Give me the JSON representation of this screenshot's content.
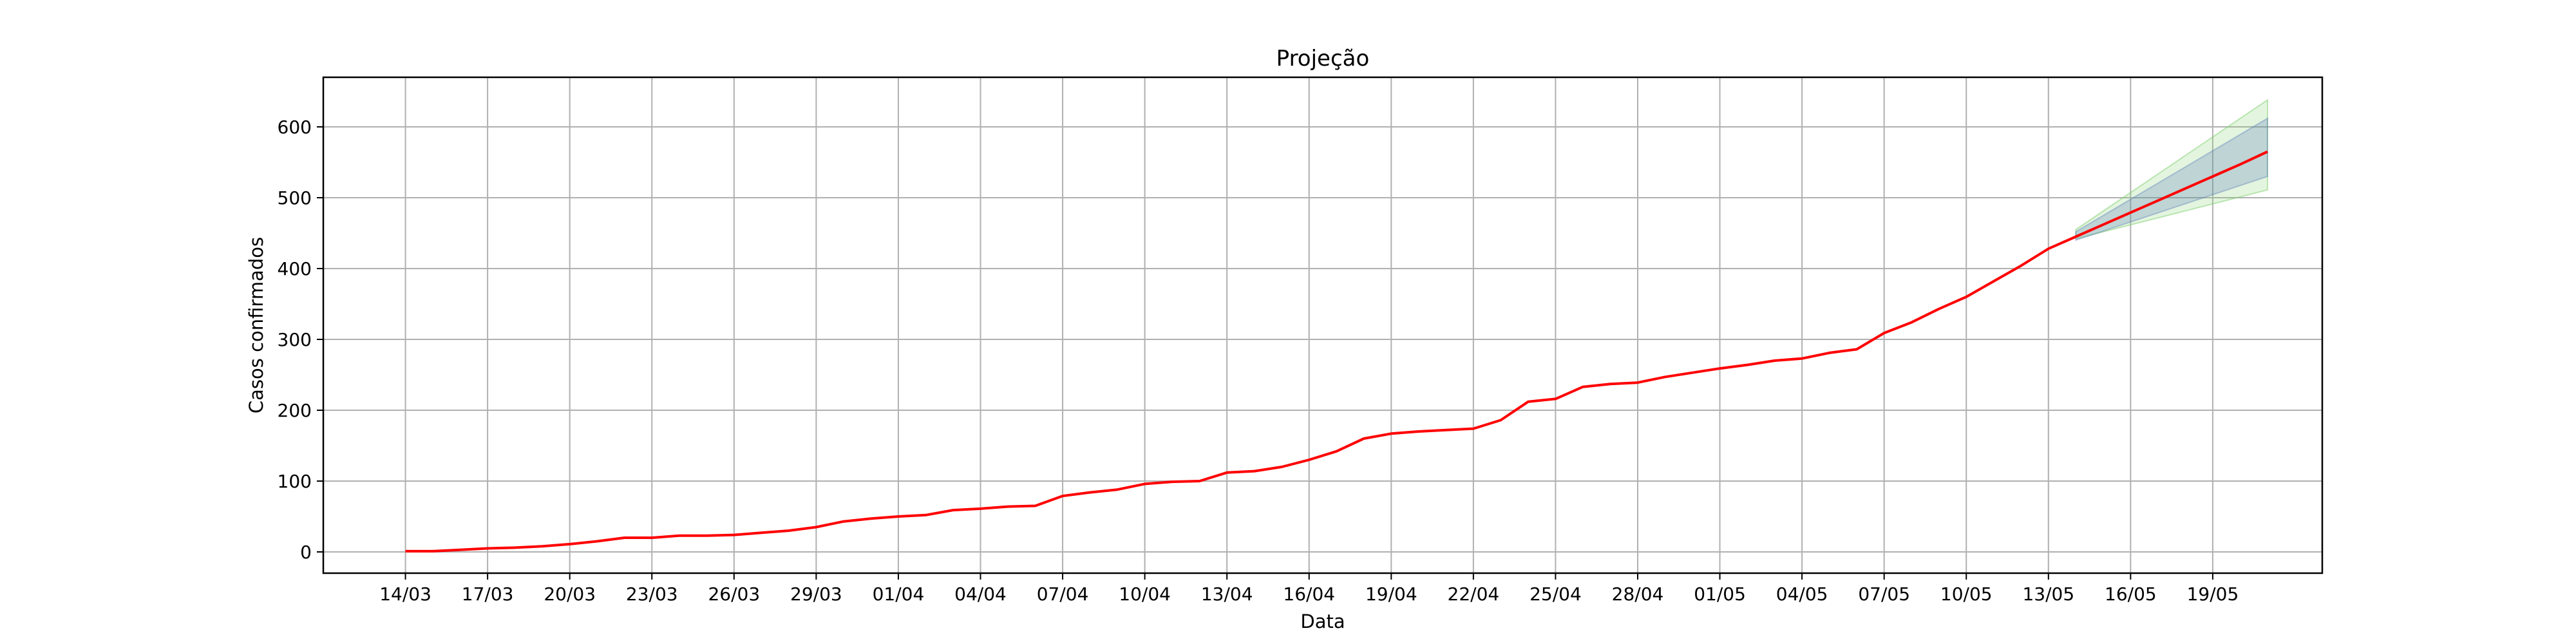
{
  "chart_data": {
    "type": "line",
    "title": "Projeção",
    "xlabel": "Data",
    "ylabel": "Casos confirmados",
    "grid": true,
    "xlim": [
      "2020-03-11",
      "2020-05-23"
    ],
    "ylim": [
      -30,
      670
    ],
    "xticks": [
      "2020-03-14",
      "2020-03-17",
      "2020-03-20",
      "2020-03-23",
      "2020-03-26",
      "2020-03-29",
      "2020-04-01",
      "2020-04-04",
      "2020-04-07",
      "2020-04-10",
      "2020-04-13",
      "2020-04-16",
      "2020-04-19",
      "2020-04-22",
      "2020-04-25",
      "2020-04-28",
      "2020-05-01",
      "2020-05-04",
      "2020-05-07",
      "2020-05-10",
      "2020-05-13",
      "2020-05-16",
      "2020-05-19"
    ],
    "xtick_labels": [
      "14/03",
      "17/03",
      "20/03",
      "23/03",
      "26/03",
      "29/03",
      "01/04",
      "04/04",
      "07/04",
      "10/04",
      "13/04",
      "16/04",
      "19/04",
      "22/04",
      "25/04",
      "28/04",
      "01/05",
      "04/05",
      "07/05",
      "10/05",
      "13/05",
      "16/05",
      "19/05"
    ],
    "yticks": [
      0,
      100,
      200,
      300,
      400,
      500,
      600
    ],
    "ytick_labels": [
      "0",
      "100",
      "200",
      "300",
      "400",
      "500",
      "600"
    ],
    "colors": {
      "line": "#ff0000",
      "band_inner": "#4f74b8",
      "band_outer": "#7fd06f",
      "grid": "#b0b0b0"
    },
    "series": [
      {
        "x": [
          "2020-03-14",
          "2020-03-15",
          "2020-03-16",
          "2020-03-17",
          "2020-03-18",
          "2020-03-19",
          "2020-03-20",
          "2020-03-21",
          "2020-03-22",
          "2020-03-23",
          "2020-03-24",
          "2020-03-25",
          "2020-03-26",
          "2020-03-27",
          "2020-03-28",
          "2020-03-29",
          "2020-03-30",
          "2020-03-31",
          "2020-04-01",
          "2020-04-02",
          "2020-04-03",
          "2020-04-04",
          "2020-04-05",
          "2020-04-06",
          "2020-04-07",
          "2020-04-08",
          "2020-04-09",
          "2020-04-10",
          "2020-04-11",
          "2020-04-12",
          "2020-04-13",
          "2020-04-14",
          "2020-04-15",
          "2020-04-16",
          "2020-04-17",
          "2020-04-18",
          "2020-04-19",
          "2020-04-20",
          "2020-04-21",
          "2020-04-22",
          "2020-04-23",
          "2020-04-24",
          "2020-04-25",
          "2020-04-26",
          "2020-04-27",
          "2020-04-28",
          "2020-04-29",
          "2020-04-30",
          "2020-05-01",
          "2020-05-02",
          "2020-05-03",
          "2020-05-04",
          "2020-05-05",
          "2020-05-06",
          "2020-05-07",
          "2020-05-08",
          "2020-05-09",
          "2020-05-10",
          "2020-05-11",
          "2020-05-12",
          "2020-05-13",
          "2020-05-14",
          "2020-05-15",
          "2020-05-16",
          "2020-05-17",
          "2020-05-18",
          "2020-05-19",
          "2020-05-20",
          "2020-05-21"
        ],
        "values": [
          1,
          1,
          3,
          5,
          6,
          8,
          11,
          15,
          20,
          20,
          23,
          23,
          24,
          27,
          30,
          35,
          43,
          47,
          50,
          52,
          59,
          61,
          64,
          65,
          79,
          84,
          88,
          96,
          99,
          100,
          112,
          114,
          120,
          130,
          142,
          160,
          167,
          170,
          172,
          174,
          186,
          212,
          216,
          233,
          237,
          239,
          247,
          253,
          259,
          264,
          270,
          273,
          281,
          286,
          309,
          324,
          343,
          360,
          382,
          404,
          428,
          445,
          462,
          479,
          496,
          513,
          530,
          547,
          565
        ]
      }
    ],
    "bands": [
      {
        "x": [
          "2020-05-14",
          "2020-05-21"
        ],
        "lower": [
          442,
          511
        ],
        "upper": [
          455,
          638
        ]
      },
      {
        "x": [
          "2020-05-14",
          "2020-05-21"
        ],
        "lower": [
          440,
          530
        ],
        "upper": [
          452,
          612
        ]
      }
    ]
  }
}
